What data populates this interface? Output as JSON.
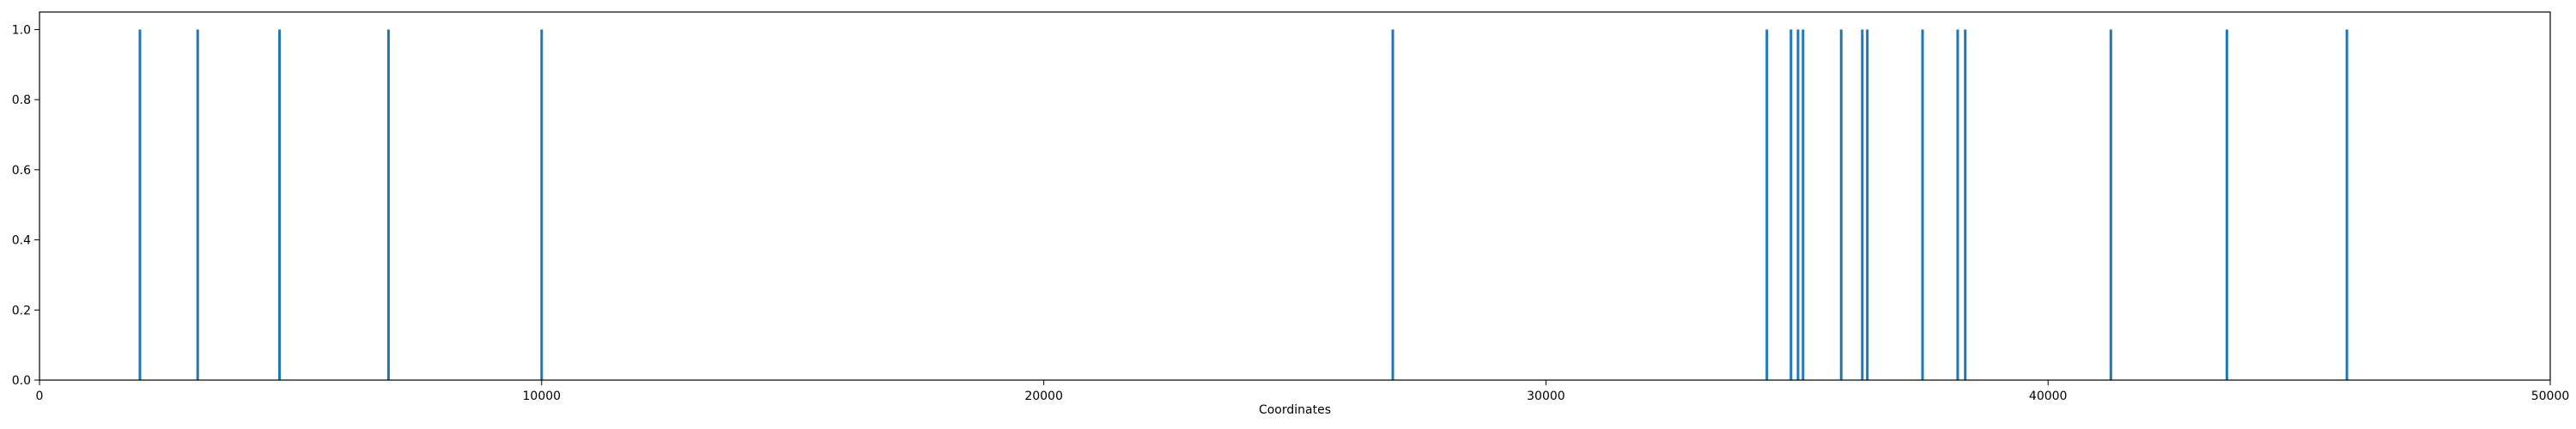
{
  "chart_data": {
    "type": "bar",
    "title": "",
    "xlabel": "Coordinates",
    "ylabel": "",
    "xlim": [
      0,
      50000
    ],
    "ylim": [
      0,
      1.05
    ],
    "grid": false,
    "x_ticks": [
      0,
      10000,
      20000,
      30000,
      40000,
      50000
    ],
    "x_tick_labels": [
      "0",
      "10000",
      "20000",
      "30000",
      "40000",
      "50000"
    ],
    "y_ticks": [
      0.0,
      0.2,
      0.4,
      0.6,
      0.8,
      1.0
    ],
    "y_tick_labels": [
      "0.0",
      "0.2",
      "0.4",
      "0.6",
      "0.8",
      "1.0"
    ],
    "bar_color": "#1f77b4",
    "series": [
      {
        "x": [
          2000,
          3150,
          4780,
          6950,
          10000,
          26950,
          34400,
          34880,
          35020,
          35120,
          35880,
          36300,
          36400,
          37500,
          38200,
          38350,
          41250,
          43560,
          45950
        ],
        "values": [
          1,
          1,
          1,
          1,
          1,
          1,
          1,
          1,
          1,
          1,
          1,
          1,
          1,
          1,
          1,
          1,
          1,
          1,
          1
        ]
      }
    ]
  }
}
